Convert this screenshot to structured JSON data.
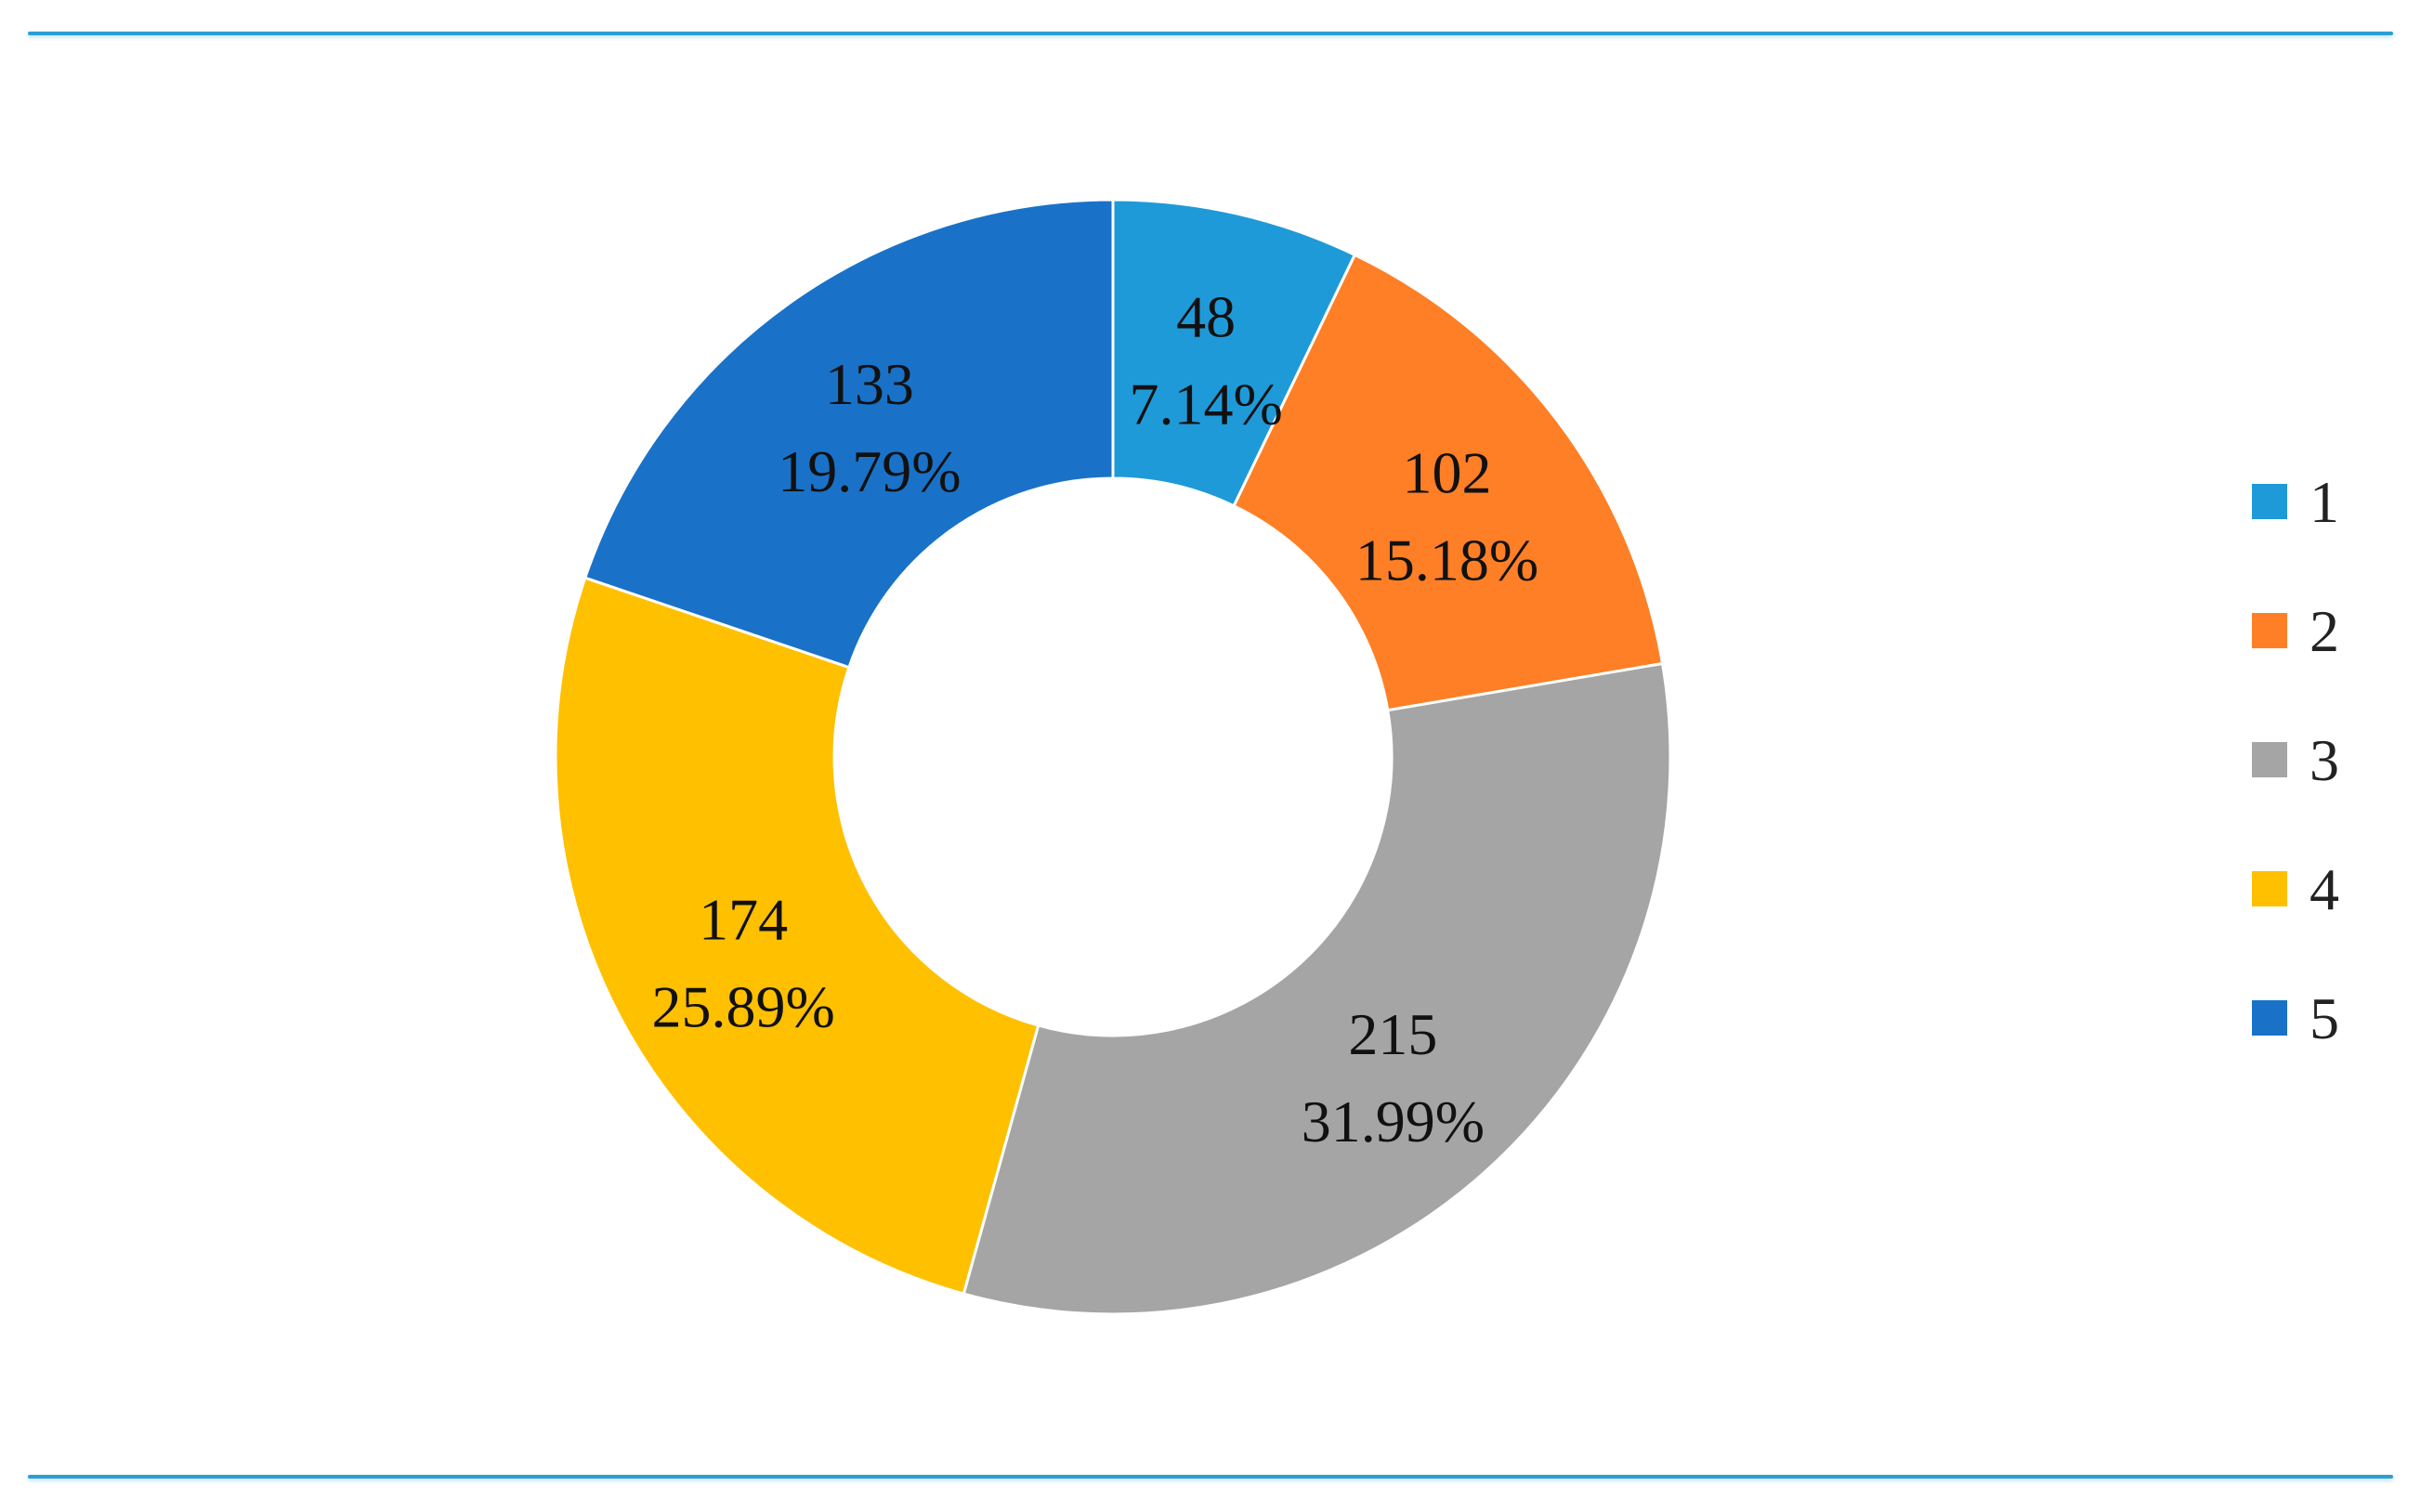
{
  "chart_data": {
    "type": "pie",
    "donut": true,
    "title": "",
    "categories": [
      "1",
      "2",
      "3",
      "4",
      "5"
    ],
    "values": [
      48,
      102,
      215,
      174,
      133
    ],
    "percent_labels": [
      "7.14%",
      "15.18%",
      "31.99%",
      "25.89%",
      "19.79%"
    ],
    "value_labels": [
      "48",
      "102",
      "215",
      "174",
      "133"
    ],
    "colors": [
      "#1f9ad8",
      "#ff7f26",
      "#a5a5a5",
      "#ffc000",
      "#1972c8"
    ],
    "legend": {
      "position": "right",
      "entries": [
        "1",
        "2",
        "3",
        "4",
        "5"
      ]
    },
    "start_angle_deg": 0,
    "direction": "clockwise"
  },
  "decor": {
    "rule_color": "#2a9fd6"
  }
}
